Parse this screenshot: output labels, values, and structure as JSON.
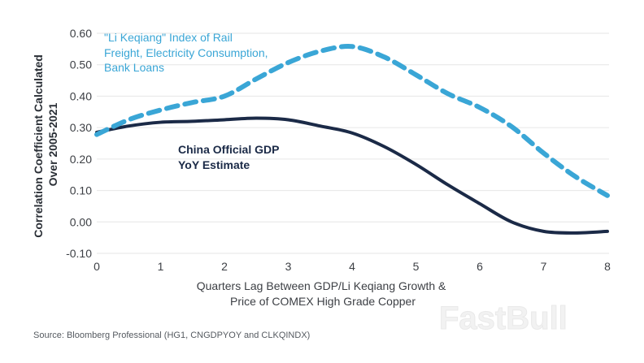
{
  "chart_data": {
    "type": "line",
    "title": "",
    "xlabel": "Quarters Lag Between GDP/Li Keqiang Growth & Price of COMEX High Grade Copper",
    "xlabel_lines": [
      "Quarters Lag Between GDP/Li Keqiang Growth &",
      "Price of COMEX High Grade Copper"
    ],
    "ylabel": "Correlation Coefficient Calculated Over 2005-2021",
    "ylabel_lines": [
      "Correlation Coefficient Calculated",
      "Over 2005-2021"
    ],
    "xlim": [
      0,
      8
    ],
    "ylim": [
      -0.1,
      0.6
    ],
    "x_ticks": [
      "0",
      "1",
      "2",
      "3",
      "4",
      "5",
      "6",
      "7",
      "8"
    ],
    "y_ticks": [
      "-0.10",
      "0.00",
      "0.10",
      "0.20",
      "0.30",
      "0.40",
      "0.50",
      "0.60"
    ],
    "grid": true,
    "x": [
      0,
      0.5,
      1,
      1.5,
      2,
      2.5,
      3,
      3.5,
      4,
      4.5,
      5,
      5.5,
      6,
      6.5,
      7,
      7.5,
      8
    ],
    "series": [
      {
        "name": "\"Li Keqiang\" Index of Rail Freight, Electricity Consumption, Bank Loans",
        "label_lines": [
          "\"Li Keqiang\" Index of Rail",
          "Freight, Electricity Consumption,",
          "Bank Loans"
        ],
        "style": "dashed",
        "color": "#3aa6d6",
        "values": [
          0.278,
          0.325,
          0.356,
          0.38,
          0.4,
          0.455,
          0.507,
          0.543,
          0.558,
          0.525,
          0.468,
          0.408,
          0.364,
          0.303,
          0.219,
          0.144,
          0.084
        ]
      },
      {
        "name": "China Official GDP YoY Estimate",
        "label_lines": [
          "China Official GDP",
          "YoY Estimate"
        ],
        "style": "solid",
        "color": "#1b2a47",
        "values": [
          0.285,
          0.305,
          0.317,
          0.32,
          0.325,
          0.33,
          0.325,
          0.305,
          0.283,
          0.24,
          0.183,
          0.118,
          0.058,
          0.0,
          -0.03,
          -0.035,
          -0.03
        ]
      }
    ],
    "source": "Source: Bloomberg Professional (HG1, CNGDPYOY and CLKQINDX)"
  },
  "watermark": "FastBull"
}
